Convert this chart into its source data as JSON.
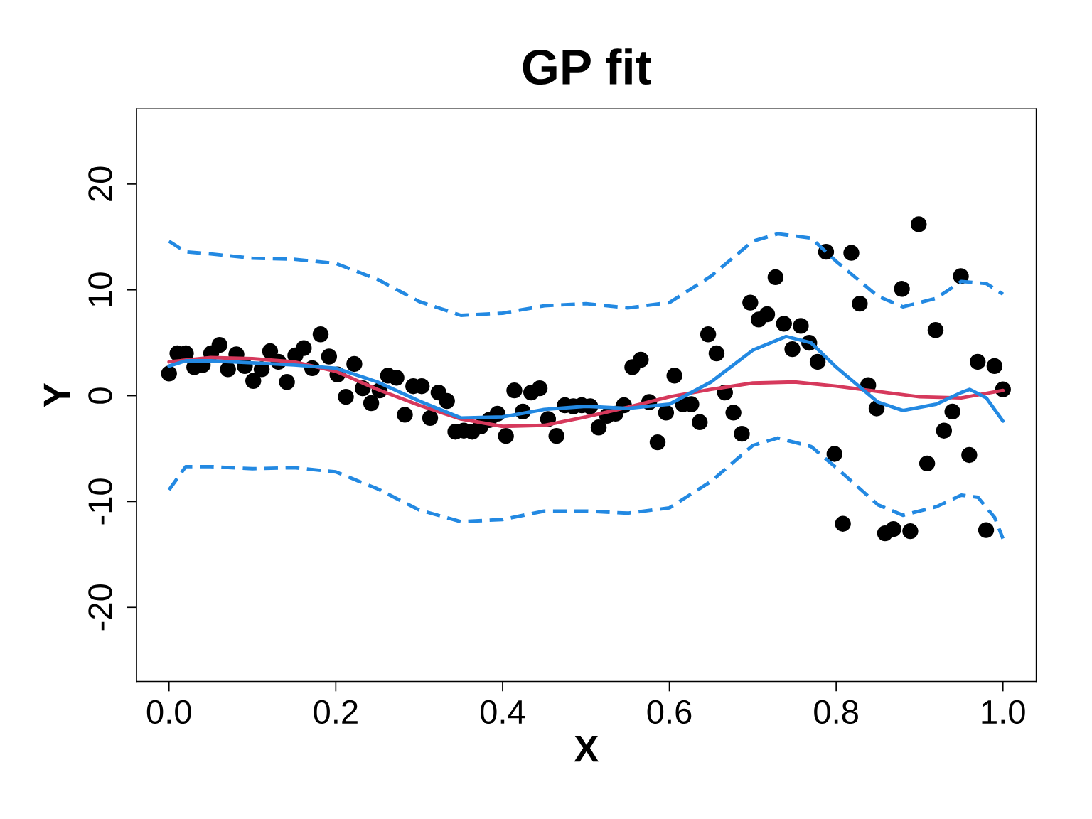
{
  "chart_data": {
    "type": "scatter",
    "title": "GP fit",
    "xlabel": "X",
    "ylabel": "Y",
    "xlim": [
      -0.039,
      1.04
    ],
    "ylim": [
      -27,
      27.1
    ],
    "xticks": [
      {
        "value": 0,
        "label": "0.0"
      },
      {
        "value": 0.2,
        "label": "0.2"
      },
      {
        "value": 0.4,
        "label": "0.4"
      },
      {
        "value": 0.6,
        "label": "0.6"
      },
      {
        "value": 0.8,
        "label": "0.8"
      },
      {
        "value": 1,
        "label": "1.0"
      }
    ],
    "yticks": [
      -20,
      -10,
      0,
      10,
      20
    ],
    "grid": false,
    "series": [
      {
        "color": "#000000",
        "marker": "circle",
        "x": [
          0.0,
          0.0101,
          0.0202,
          0.0303,
          0.0404,
          0.0505,
          0.0606,
          0.0707,
          0.0808,
          0.0909,
          0.101,
          0.1111,
          0.1212,
          0.1313,
          0.1414,
          0.1515,
          0.1616,
          0.1717,
          0.1818,
          0.1919,
          0.202,
          0.2121,
          0.2222,
          0.2323,
          0.2424,
          0.2525,
          0.2626,
          0.2727,
          0.2828,
          0.2929,
          0.303,
          0.3131,
          0.3232,
          0.3333,
          0.3434,
          0.3535,
          0.3636,
          0.3737,
          0.3838,
          0.3939,
          0.404,
          0.4141,
          0.4242,
          0.4343,
          0.4444,
          0.4545,
          0.4646,
          0.4747,
          0.4848,
          0.4949,
          0.5051,
          0.5152,
          0.5253,
          0.5354,
          0.5455,
          0.5556,
          0.5657,
          0.5758,
          0.5859,
          0.596,
          0.6061,
          0.6162,
          0.6263,
          0.6364,
          0.6465,
          0.6566,
          0.6667,
          0.6768,
          0.6869,
          0.697,
          0.7071,
          0.7172,
          0.7273,
          0.7374,
          0.7475,
          0.7576,
          0.7677,
          0.7778,
          0.7879,
          0.798,
          0.8081,
          0.8182,
          0.8283,
          0.8384,
          0.8485,
          0.8586,
          0.8687,
          0.8788,
          0.8889,
          0.899,
          0.9091,
          0.9192,
          0.9293,
          0.9394,
          0.9495,
          0.9596,
          0.9697,
          0.9798,
          0.9899,
          1.0
        ],
        "values": [
          2.1,
          4.0,
          4.0,
          2.7,
          2.9,
          4.0,
          4.8,
          2.5,
          3.9,
          2.8,
          1.4,
          2.5,
          4.2,
          3.2,
          1.3,
          3.8,
          4.5,
          2.6,
          5.8,
          3.7,
          2.0,
          -0.1,
          3.0,
          0.7,
          -0.7,
          0.5,
          1.9,
          1.7,
          -1.8,
          0.9,
          0.9,
          -2.1,
          0.3,
          -0.5,
          -3.4,
          -3.3,
          -3.4,
          -2.9,
          -2.3,
          -1.7,
          -3.8,
          0.5,
          -1.5,
          0.3,
          0.7,
          -2.2,
          -3.8,
          -0.9,
          -1.0,
          -0.9,
          -1.0,
          -3.0,
          -1.9,
          -1.7,
          -0.9,
          2.7,
          3.4,
          -0.6,
          -4.4,
          -1.6,
          1.9,
          -0.8,
          -0.8,
          -2.5,
          5.8,
          4.0,
          0.3,
          -1.6,
          -3.6,
          8.8,
          7.2,
          7.7,
          11.2,
          6.8,
          4.4,
          6.6,
          5.0,
          3.2,
          13.6,
          -5.5,
          -12.1,
          13.5,
          8.7,
          1.0,
          -1.2,
          -13.0,
          -12.6,
          10.1,
          -12.8,
          16.2,
          -6.4,
          6.2,
          -3.3,
          -1.5,
          11.3,
          -5.6,
          3.2,
          -12.7,
          2.8,
          0.6
        ]
      },
      {
        "type": "line",
        "color": "#d6395c",
        "line_style": "solid",
        "x": [
          0,
          0.05,
          0.1,
          0.15,
          0.2,
          0.25,
          0.3,
          0.35,
          0.4,
          0.45,
          0.5,
          0.55,
          0.6,
          0.65,
          0.7,
          0.75,
          0.8,
          0.85,
          0.9,
          0.95,
          1.0
        ],
        "values": [
          3.2,
          3.6,
          3.5,
          3.2,
          2.3,
          0.6,
          -0.9,
          -2.2,
          -2.9,
          -2.8,
          -2.0,
          -1.1,
          -0.1,
          0.6,
          1.2,
          1.3,
          0.9,
          0.4,
          -0.1,
          -0.2,
          0.5
        ]
      },
      {
        "type": "line",
        "color": "#2389e2",
        "line_style": "solid",
        "x": [
          0,
          0.02,
          0.05,
          0.1,
          0.15,
          0.2,
          0.25,
          0.3,
          0.35,
          0.4,
          0.45,
          0.5,
          0.55,
          0.6,
          0.65,
          0.7,
          0.74,
          0.77,
          0.8,
          0.85,
          0.88,
          0.92,
          0.95,
          0.96,
          0.98,
          1.0
        ],
        "values": [
          2.8,
          3.3,
          3.3,
          3.1,
          2.9,
          2.6,
          1.3,
          -0.5,
          -2.1,
          -2.0,
          -1.3,
          -1.0,
          -1.2,
          -0.8,
          1.3,
          4.3,
          5.6,
          5.0,
          2.7,
          -0.6,
          -1.4,
          -0.8,
          0.3,
          0.6,
          -0.2,
          -2.4
        ]
      },
      {
        "type": "line",
        "color": "#2389e2",
        "line_style": "dashed",
        "x": [
          0,
          0.02,
          0.05,
          0.1,
          0.15,
          0.2,
          0.25,
          0.3,
          0.35,
          0.4,
          0.45,
          0.5,
          0.55,
          0.6,
          0.65,
          0.7,
          0.73,
          0.77,
          0.8,
          0.85,
          0.88,
          0.92,
          0.95,
          0.98,
          1.0
        ],
        "values": [
          14.6,
          13.6,
          13.4,
          13.0,
          12.9,
          12.5,
          11.0,
          8.9,
          7.6,
          7.8,
          8.5,
          8.7,
          8.3,
          8.8,
          11.3,
          14.6,
          15.3,
          14.9,
          12.7,
          9.4,
          8.4,
          9.2,
          10.8,
          10.6,
          9.6
        ]
      },
      {
        "type": "line",
        "color": "#2389e2",
        "line_style": "dashed",
        "x": [
          0,
          0.02,
          0.05,
          0.1,
          0.15,
          0.2,
          0.25,
          0.3,
          0.35,
          0.4,
          0.45,
          0.5,
          0.55,
          0.6,
          0.65,
          0.7,
          0.73,
          0.77,
          0.8,
          0.85,
          0.88,
          0.92,
          0.95,
          0.97,
          0.99,
          1.0
        ],
        "values": [
          -8.9,
          -6.7,
          -6.7,
          -6.9,
          -6.8,
          -7.2,
          -8.8,
          -10.8,
          -11.9,
          -11.7,
          -10.9,
          -10.9,
          -11.1,
          -10.6,
          -8.1,
          -4.7,
          -4.0,
          -4.8,
          -6.8,
          -10.3,
          -11.3,
          -10.5,
          -9.4,
          -9.6,
          -11.5,
          -13.5
        ]
      }
    ]
  }
}
